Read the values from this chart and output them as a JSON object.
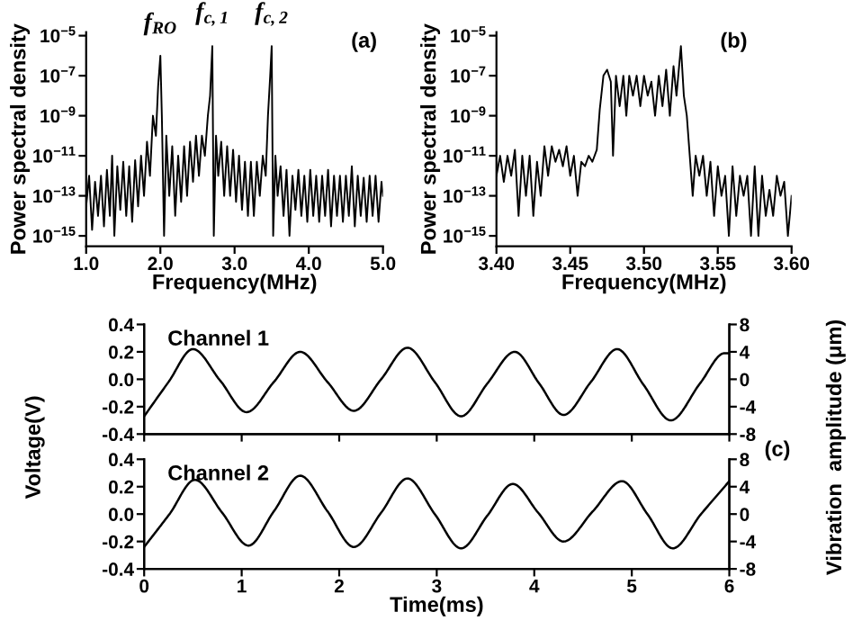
{
  "chart_data": [
    {
      "type": "line",
      "xlabel": "Frequency(MHz)",
      "ylabel": "Power spectral density",
      "log": "y",
      "xlim": [
        1.0,
        5.0
      ],
      "xticks": [
        {
          "value": 1.0,
          "label": "1.0"
        },
        {
          "value": 2.0,
          "label": "2.0"
        },
        {
          "value": 3.0,
          "label": "3.0"
        },
        {
          "value": 4.0,
          "label": "4.0"
        },
        {
          "value": 5.0,
          "label": "5.0"
        }
      ],
      "ylim": [
        3e-16,
        1.5e-05
      ],
      "yticks": [
        {
          "value": 1e-15,
          "label": "10$^{−15}$"
        },
        {
          "value": 1e-13,
          "label": "10$^{−13}$"
        },
        {
          "value": 1e-11,
          "label": "10$^{−11}$"
        },
        {
          "value": 1e-09,
          "label": "10$^{−9}$"
        },
        {
          "value": 1e-07,
          "label": "10$^{−7}$"
        },
        {
          "value": 1e-05,
          "label": "10$^{−5}$"
        }
      ],
      "annotations": [
        {
          "text": "f$_{RO}$",
          "x": 2.0,
          "y": 1e-06
        },
        {
          "text": "f$_{c,1}$",
          "x": 2.7,
          "y": 3e-06
        },
        {
          "text": "f$_{c,2}$",
          "x": 3.5,
          "y": 3e-06
        },
        "(a)"
      ],
      "series": [
        {
          "color": "#000000",
          "x": [
            1.0,
            1.04,
            1.08,
            1.12,
            1.16,
            1.2,
            1.24,
            1.28,
            1.32,
            1.35,
            1.38,
            1.42,
            1.46,
            1.5,
            1.54,
            1.58,
            1.62,
            1.66,
            1.7,
            1.74,
            1.78,
            1.82,
            1.86,
            1.9,
            1.94,
            1.97,
            2.0,
            2.02,
            2.05,
            2.08,
            2.12,
            2.16,
            2.2,
            2.24,
            2.28,
            2.32,
            2.36,
            2.4,
            2.44,
            2.48,
            2.52,
            2.56,
            2.6,
            2.64,
            2.67,
            2.7,
            2.72,
            2.75,
            2.78,
            2.82,
            2.86,
            2.9,
            2.94,
            2.98,
            3.02,
            3.06,
            3.1,
            3.14,
            3.18,
            3.22,
            3.26,
            3.3,
            3.34,
            3.38,
            3.42,
            3.45,
            3.48,
            3.5,
            3.52,
            3.55,
            3.58,
            3.62,
            3.66,
            3.7,
            3.74,
            3.78,
            3.82,
            3.86,
            3.9,
            3.94,
            3.98,
            4.02,
            4.06,
            4.1,
            4.14,
            4.18,
            4.22,
            4.26,
            4.3,
            4.34,
            4.38,
            4.42,
            4.46,
            4.5,
            4.54,
            4.58,
            4.62,
            4.66,
            4.7,
            4.74,
            4.78,
            4.82,
            4.86,
            4.9,
            4.94,
            4.98,
            5.0
          ],
          "values": [
            3e-14,
            1e-12,
            2e-15,
            5e-13,
            1e-14,
            1e-12,
            3e-15,
            2e-12,
            1e-14,
            1e-11,
            1e-15,
            3e-12,
            2e-14,
            5e-12,
            1e-14,
            3e-12,
            5e-15,
            6e-12,
            3e-14,
            1e-11,
            1e-13,
            5e-11,
            1e-12,
            1e-09,
            1e-10,
            3e-08,
            1e-06,
            1e-09,
            1e-15,
            1e-10,
            1e-13,
            3e-11,
            1e-14,
            1e-11,
            5e-14,
            3e-11,
            1e-13,
            5e-11,
            5e-13,
            1e-10,
            1e-12,
            1e-10,
            1e-11,
            1e-09,
            1e-08,
            3e-06,
            1e-15,
            1e-10,
            1e-12,
            5e-11,
            1e-13,
            3e-11,
            1e-13,
            2e-11,
            5e-14,
            1e-11,
            2e-14,
            5e-12,
            1e-14,
            5e-12,
            1e-14,
            5e-12,
            1e-13,
            1e-11,
            1e-12,
            1e-09,
            1e-07,
            3e-06,
            1e-15,
            1e-11,
            1e-13,
            3e-12,
            1e-14,
            2e-12,
            1e-15,
            1e-12,
            2e-14,
            2e-12,
            1e-14,
            1e-12,
            5e-15,
            2e-12,
            1e-14,
            1e-12,
            5e-15,
            1e-12,
            1e-14,
            2e-12,
            3e-15,
            1e-12,
            1e-14,
            1e-12,
            5e-15,
            1e-12,
            1e-14,
            3e-12,
            3e-15,
            1e-12,
            1e-14,
            8e-13,
            5e-15,
            1e-12,
            1e-14,
            1e-12,
            5e-15,
            5e-13,
            1e-13
          ]
        }
      ]
    },
    {
      "type": "line",
      "xlabel": "Frequency(MHz)",
      "ylabel": "Power spectral density",
      "log": "y",
      "xlim": [
        3.4,
        3.6
      ],
      "xticks": [
        {
          "value": 3.4,
          "label": "3.40"
        },
        {
          "value": 3.45,
          "label": "3.45"
        },
        {
          "value": 3.5,
          "label": "3.50"
        },
        {
          "value": 3.55,
          "label": "3.55"
        },
        {
          "value": 3.6,
          "label": "3.60"
        }
      ],
      "ylim": [
        3e-16,
        1.5e-05
      ],
      "yticks": [
        {
          "value": 1e-15,
          "label": "10$^{−15}$"
        },
        {
          "value": 1e-13,
          "label": "10$^{−13}$"
        },
        {
          "value": 1e-11,
          "label": "10$^{−11}$"
        },
        {
          "value": 1e-09,
          "label": "10$^{−9}$"
        },
        {
          "value": 1e-07,
          "label": "10$^{−7}$"
        },
        {
          "value": 1e-05,
          "label": "10$^{−5}$"
        }
      ],
      "annotations": [
        "(b)"
      ],
      "series": [
        {
          "color": "#000000",
          "x": [
            3.4,
            3.4025,
            3.405,
            3.4075,
            3.41,
            3.4125,
            3.415,
            3.4175,
            3.42,
            3.4225,
            3.425,
            3.4275,
            3.43,
            3.4325,
            3.435,
            3.4375,
            3.44,
            3.4425,
            3.445,
            3.4475,
            3.45,
            3.4525,
            3.455,
            3.4575,
            3.46,
            3.4625,
            3.465,
            3.468,
            3.47,
            3.4725,
            3.475,
            3.4775,
            3.479,
            3.481,
            3.4835,
            3.486,
            3.488,
            3.49,
            3.4925,
            3.495,
            3.4975,
            3.5,
            3.5025,
            3.505,
            3.5075,
            3.51,
            3.5125,
            3.515,
            3.5175,
            3.52,
            3.522,
            3.525,
            3.527,
            3.529,
            3.531,
            3.533,
            3.535,
            3.5375,
            3.54,
            3.5425,
            3.545,
            3.5475,
            3.55,
            3.5525,
            3.555,
            3.5575,
            3.56,
            3.5625,
            3.565,
            3.5675,
            3.57,
            3.5725,
            3.575,
            3.5775,
            3.58,
            3.5825,
            3.585,
            3.5875,
            3.59,
            3.5925,
            3.595,
            3.5975,
            3.6
          ],
          "values": [
            1e-12,
            1e-11,
            5e-13,
            1e-11,
            1e-12,
            2e-11,
            1e-14,
            1e-11,
            1e-13,
            1e-11,
            1e-14,
            5e-12,
            1e-13,
            3e-11,
            1e-12,
            3e-11,
            5e-12,
            2e-11,
            3e-12,
            3e-11,
            1e-12,
            1e-11,
            1e-13,
            5e-12,
            3e-12,
            1e-11,
            5e-12,
            2e-11,
            2e-09,
            1e-07,
            2e-07,
            5e-08,
            1e-11,
            1e-07,
            3e-09,
            1e-07,
            1e-09,
            1e-07,
            1e-08,
            1e-07,
            3e-09,
            1e-07,
            1e-08,
            5e-08,
            1e-09,
            1e-07,
            3e-09,
            2e-07,
            1e-09,
            3e-07,
            1e-08,
            3e-06,
            1e-08,
            1e-09,
            1e-11,
            1e-13,
            1e-11,
            1e-12,
            1e-11,
            1e-13,
            5e-12,
            1e-14,
            3e-12,
            1e-13,
            1e-12,
            1e-15,
            3e-12,
            1e-14,
            1e-12,
            1e-13,
            1e-12,
            1e-15,
            3e-12,
            1e-15,
            1e-12,
            1e-14,
            2e-13,
            1e-14,
            1e-12,
            1e-13,
            5e-13,
            1e-15,
            1e-13
          ]
        }
      ]
    },
    {
      "type": "line",
      "ylabel": "Voltage(V)",
      "y2label": "Vibration  amplitude (μm)",
      "tick_labels": "y",
      "xlim": [
        0,
        6
      ],
      "xticks": [
        0,
        1,
        2,
        3,
        4,
        5,
        6
      ],
      "ylim": [
        -0.4,
        0.4
      ],
      "yticks": [
        {
          "value": -0.4,
          "label": "-0.4"
        },
        {
          "value": -0.2,
          "label": "-0.2"
        },
        {
          "value": 0,
          "label": "0.0"
        },
        {
          "value": 0.2,
          "label": "0.2"
        },
        {
          "value": 0.4,
          "label": "0.4"
        }
      ],
      "y2lim": [
        -8,
        8
      ],
      "y2ticks": [
        -8,
        -4,
        0,
        4,
        8
      ],
      "annotations": [
        "Channel 1",
        "(c)"
      ],
      "series": [
        {
          "color": "#000000",
          "x": [
            0,
            0.25,
            0.5,
            0.78,
            1.05,
            1.33,
            1.6,
            1.88,
            2.15,
            2.43,
            2.7,
            2.98,
            3.25,
            3.52,
            3.8,
            4.05,
            4.3,
            4.58,
            4.85,
            5.12,
            5.4,
            5.7,
            5.95,
            6
          ],
          "values": [
            -0.27,
            -0.02,
            0.22,
            -0.01,
            -0.24,
            -0.02,
            0.2,
            -0.02,
            -0.23,
            0.0,
            0.23,
            -0.02,
            -0.27,
            -0.03,
            0.2,
            -0.03,
            -0.26,
            -0.02,
            0.22,
            -0.04,
            -0.3,
            -0.03,
            0.19,
            0.19
          ]
        }
      ]
    },
    {
      "type": "line",
      "xlabel": "Time(ms)",
      "xlim": [
        0,
        6
      ],
      "xticks": [
        0,
        1,
        2,
        3,
        4,
        5,
        6
      ],
      "ylim": [
        -0.4,
        0.4
      ],
      "yticks": [
        {
          "value": -0.4,
          "label": "-0.4"
        },
        {
          "value": -0.2,
          "label": "-0.2"
        },
        {
          "value": 0,
          "label": "0.0"
        },
        {
          "value": 0.2,
          "label": "0.2"
        },
        {
          "value": 0.4,
          "label": "0.4"
        }
      ],
      "y2lim": [
        -8,
        8
      ],
      "y2ticks": [
        -8,
        -4,
        0,
        4,
        8
      ],
      "annotations": [
        "Channel 2"
      ],
      "series": [
        {
          "color": "#000000",
          "x": [
            0,
            0.26,
            0.52,
            0.8,
            1.07,
            1.33,
            1.6,
            1.88,
            2.15,
            2.43,
            2.7,
            2.98,
            3.25,
            3.52,
            3.78,
            4.04,
            4.3,
            4.6,
            4.9,
            5.16,
            5.42,
            5.71,
            6
          ],
          "values": [
            -0.24,
            0.0,
            0.25,
            0.01,
            -0.23,
            0.02,
            0.28,
            0.02,
            -0.24,
            0.01,
            0.26,
            0.0,
            -0.25,
            -0.01,
            0.22,
            0.01,
            -0.2,
            0.02,
            0.24,
            0.0,
            -0.25,
            0.0,
            0.24
          ]
        }
      ]
    }
  ]
}
